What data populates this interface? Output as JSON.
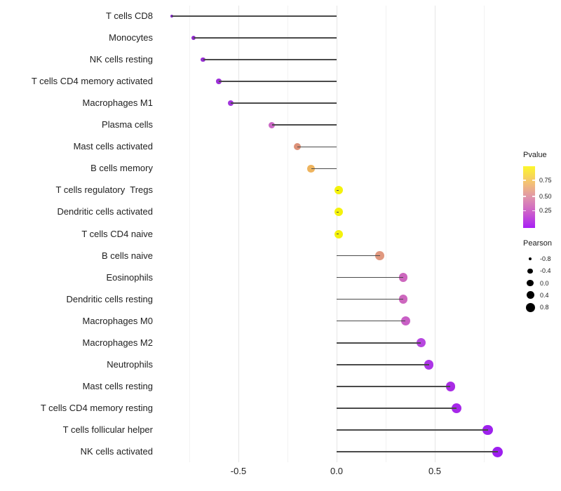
{
  "chart_data": {
    "type": "lollipop",
    "title": "",
    "xlabel": "",
    "ylabel": "",
    "grid": "vertical-only",
    "x_axis": {
      "tick_labels": [
        "-0.5",
        "0.0",
        "0.5"
      ],
      "tick_values": [
        -0.5,
        0.0,
        0.5
      ],
      "minor_gridlines": [
        -0.75,
        -0.25,
        0.25,
        0.75
      ],
      "range": [
        -0.92,
        0.9
      ]
    },
    "points": [
      {
        "label": "T cells CD8",
        "pearson": -0.84,
        "color": "#7f23c6",
        "diameter": 4
      },
      {
        "label": "Monocytes",
        "pearson": -0.73,
        "color": "#9129cf",
        "diameter": 6
      },
      {
        "label": "NK cells resting",
        "pearson": -0.68,
        "color": "#962cd3",
        "diameter": 6.5
      },
      {
        "label": "T cells CD4 memory activated",
        "pearson": -0.6,
        "color": "#9d31d8",
        "diameter": 7.5
      },
      {
        "label": "Macrophages M1",
        "pearson": -0.54,
        "color": "#a236dc",
        "diameter": 8
      },
      {
        "label": "Plasma cells",
        "pearson": -0.33,
        "color": "#ca67c5",
        "diameter": 9.5
      },
      {
        "label": "Mast cells activated",
        "pearson": -0.2,
        "color": "#dd9178",
        "diameter": 10
      },
      {
        "label": "B cells memory",
        "pearson": -0.13,
        "color": "#eeb45e",
        "diameter": 10.5
      },
      {
        "label": "T cells regulatory  Tregs",
        "pearson": 0.01,
        "color": "#f4f20c",
        "diameter": 12
      },
      {
        "label": "Dendritic cells activated",
        "pearson": 0.01,
        "color": "#f4f20c",
        "diameter": 12
      },
      {
        "label": "T cells CD4 naive",
        "pearson": 0.01,
        "color": "#f4f20c",
        "diameter": 12
      },
      {
        "label": "B cells naive",
        "pearson": 0.22,
        "color": "#e0987f",
        "diameter": 12.5
      },
      {
        "label": "Eosinophils",
        "pearson": 0.34,
        "color": "#cd67be",
        "diameter": 12.5
      },
      {
        "label": "Dendritic cells resting",
        "pearson": 0.34,
        "color": "#cd67be",
        "diameter": 12.5
      },
      {
        "label": "Macrophages M0",
        "pearson": 0.35,
        "color": "#c85fc5",
        "diameter": 13
      },
      {
        "label": "Macrophages M2",
        "pearson": 0.43,
        "color": "#b747df",
        "diameter": 13
      },
      {
        "label": "Neutrophils",
        "pearson": 0.47,
        "color": "#ac35e6",
        "diameter": 13.5
      },
      {
        "label": "Mast cells resting",
        "pearson": 0.58,
        "color": "#a92be5",
        "diameter": 13.5
      },
      {
        "label": "T cells CD4 memory resting",
        "pearson": 0.61,
        "color": "#a627e9",
        "diameter": 14
      },
      {
        "label": "T cells follicular helper",
        "pearson": 0.77,
        "color": "#9e22ed",
        "diameter": 14.5
      },
      {
        "label": "NK cells activated",
        "pearson": 0.82,
        "color": "#9d1fef",
        "diameter": 15
      }
    ],
    "stem_color": "#4a4a4a",
    "legend_pvalue": {
      "title": "Pvalue",
      "tick_labels": [
        "0.75",
        "0.50",
        "0.25"
      ],
      "tick_pos_pct": [
        23,
        49,
        72
      ],
      "gradient_colors": [
        "#fcf72b",
        "#f5c56f",
        "#e095ab",
        "#cc5ecb",
        "#a81ff5"
      ]
    },
    "legend_pearson": {
      "title": "Pearson",
      "dot_color": "#000000",
      "entries": [
        {
          "label": "-0.8",
          "diameter": 4.5
        },
        {
          "label": "-0.4",
          "diameter": 7.5
        },
        {
          "label": "0.0",
          "diameter": 9.5
        },
        {
          "label": "0.4",
          "diameter": 11
        },
        {
          "label": "0.8",
          "diameter": 13
        }
      ]
    }
  }
}
